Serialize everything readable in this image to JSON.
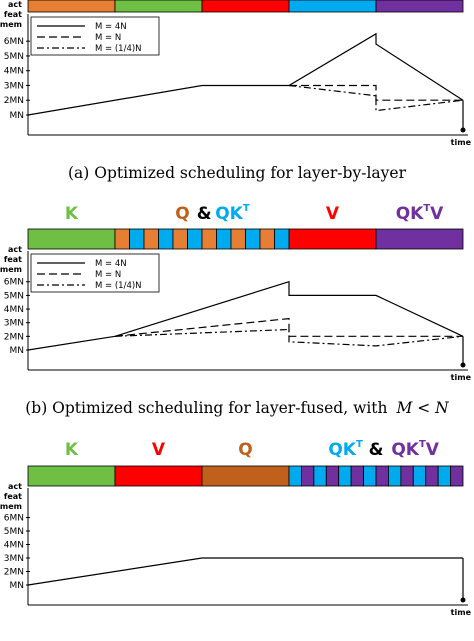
{
  "colors": {
    "K": "#6fbf45",
    "V": "#ff0000",
    "Q": "#c0601a",
    "QKT": "#00aaee",
    "QKTV": "#7030a0",
    "fusedQ": "#e67e33",
    "amp": "#000000"
  },
  "common": {
    "act_label": "act",
    "feat_label": "feat",
    "mem_label": "mem",
    "time_label": "time",
    "ticks": [
      "6MN",
      "5MN",
      "4MN",
      "3MN",
      "2MN",
      "MN"
    ],
    "legend": [
      "M = 4N",
      "M = N",
      "M = (1/4)N"
    ]
  },
  "panels": [
    {
      "caption": "(a) Optimized scheduling for layer-by-layer",
      "headers": [],
      "bar": [
        {
          "color": "#e67e33",
          "from": 0,
          "to": 0.2
        },
        {
          "color": "#6fbf45",
          "from": 0.2,
          "to": 0.4
        },
        {
          "color": "#ff0000",
          "from": 0.4,
          "to": 0.6
        },
        {
          "color": "#00aaee",
          "from": 0.6,
          "to": 0.8
        },
        {
          "color": "#7030a0",
          "from": 0.8,
          "to": 1.0
        }
      ],
      "series": [
        {
          "name": "M = 4N",
          "dash": "",
          "points": [
            [
              0,
              1
            ],
            [
              0.4,
              3
            ],
            [
              0.6,
              3
            ],
            [
              0.8,
              6.5
            ],
            [
              0.8,
              5.8
            ],
            [
              1.0,
              2
            ]
          ]
        },
        {
          "name": "M = N",
          "dash": "8,4",
          "points": [
            [
              0.6,
              3
            ],
            [
              0.8,
              3
            ],
            [
              0.8,
              2
            ],
            [
              1.0,
              2
            ]
          ]
        },
        {
          "name": "M = (1/4)N",
          "dash": "7,3,2,3",
          "points": [
            [
              0.6,
              3
            ],
            [
              0.8,
              2.3
            ],
            [
              0.8,
              1.3
            ],
            [
              1.0,
              2
            ]
          ]
        }
      ],
      "show_legend": true
    },
    {
      "caption": "(b) Optimized scheduling for layer-fused, with",
      "caption_math": "M < N",
      "headers": [
        {
          "text": "K",
          "color": "#6fbf45",
          "pos": 0.1
        },
        {
          "text": "Q",
          "color": "#c0601a",
          "pos": 0.355
        },
        {
          "text": "&",
          "color": "#000000",
          "pos": 0.405
        },
        {
          "text": "QK",
          "sup": "T",
          "color": "#00aaee",
          "pos": 0.47
        },
        {
          "text": "V",
          "color": "#ff0000",
          "pos": 0.7
        },
        {
          "text": "QK",
          "sup": "T",
          "tail": "V",
          "color": "#7030a0",
          "pos": 0.9
        }
      ],
      "bar": [
        {
          "color": "#6fbf45",
          "from": 0,
          "to": 0.2
        },
        {
          "color": "alt",
          "from": 0.2,
          "to": 0.6,
          "segments": 12,
          "a": "#e67e33",
          "b": "#00aaee"
        },
        {
          "color": "#ff0000",
          "from": 0.6,
          "to": 0.8
        },
        {
          "color": "#7030a0",
          "from": 0.8,
          "to": 1.0
        }
      ],
      "series": [
        {
          "name": "M = 4N",
          "dash": "",
          "points": [
            [
              0,
              1
            ],
            [
              0.2,
              2
            ],
            [
              0.6,
              6
            ],
            [
              0.6,
              5
            ],
            [
              0.8,
              5
            ],
            [
              1.0,
              2
            ]
          ]
        },
        {
          "name": "M = N",
          "dash": "8,4",
          "points": [
            [
              0.2,
              2
            ],
            [
              0.6,
              3.3
            ],
            [
              0.6,
              2
            ],
            [
              1.0,
              2
            ]
          ]
        },
        {
          "name": "M = (1/4)N",
          "dash": "7,3,2,3",
          "points": [
            [
              0.2,
              2
            ],
            [
              0.6,
              2.5
            ],
            [
              0.6,
              1.6
            ],
            [
              0.8,
              1.3
            ],
            [
              1.0,
              2
            ]
          ]
        }
      ],
      "show_legend": true
    },
    {
      "caption": "",
      "headers": [
        {
          "text": "K",
          "color": "#6fbf45",
          "pos": 0.1
        },
        {
          "text": "V",
          "color": "#ff0000",
          "pos": 0.3
        },
        {
          "text": "Q",
          "color": "#c0601a",
          "pos": 0.5
        },
        {
          "text": "QK",
          "sup": "T",
          "color": "#00aaee",
          "pos": 0.73
        },
        {
          "text": "&",
          "color": "#000000",
          "pos": 0.8
        },
        {
          "text": "QK",
          "sup": "T",
          "tail": "V",
          "color": "#7030a0",
          "pos": 0.89
        }
      ],
      "bar": [
        {
          "color": "#6fbf45",
          "from": 0,
          "to": 0.2
        },
        {
          "color": "#ff0000",
          "from": 0.2,
          "to": 0.4
        },
        {
          "color": "#c0601a",
          "from": 0.4,
          "to": 0.6
        },
        {
          "color": "alt",
          "from": 0.6,
          "to": 1.0,
          "segments": 14,
          "a": "#00aaee",
          "b": "#7030a0"
        }
      ],
      "series": [
        {
          "name": "M = 4N",
          "dash": "",
          "points": [
            [
              0,
              1
            ],
            [
              0.4,
              3
            ],
            [
              1.0,
              3
            ]
          ]
        }
      ],
      "show_legend": false
    }
  ]
}
